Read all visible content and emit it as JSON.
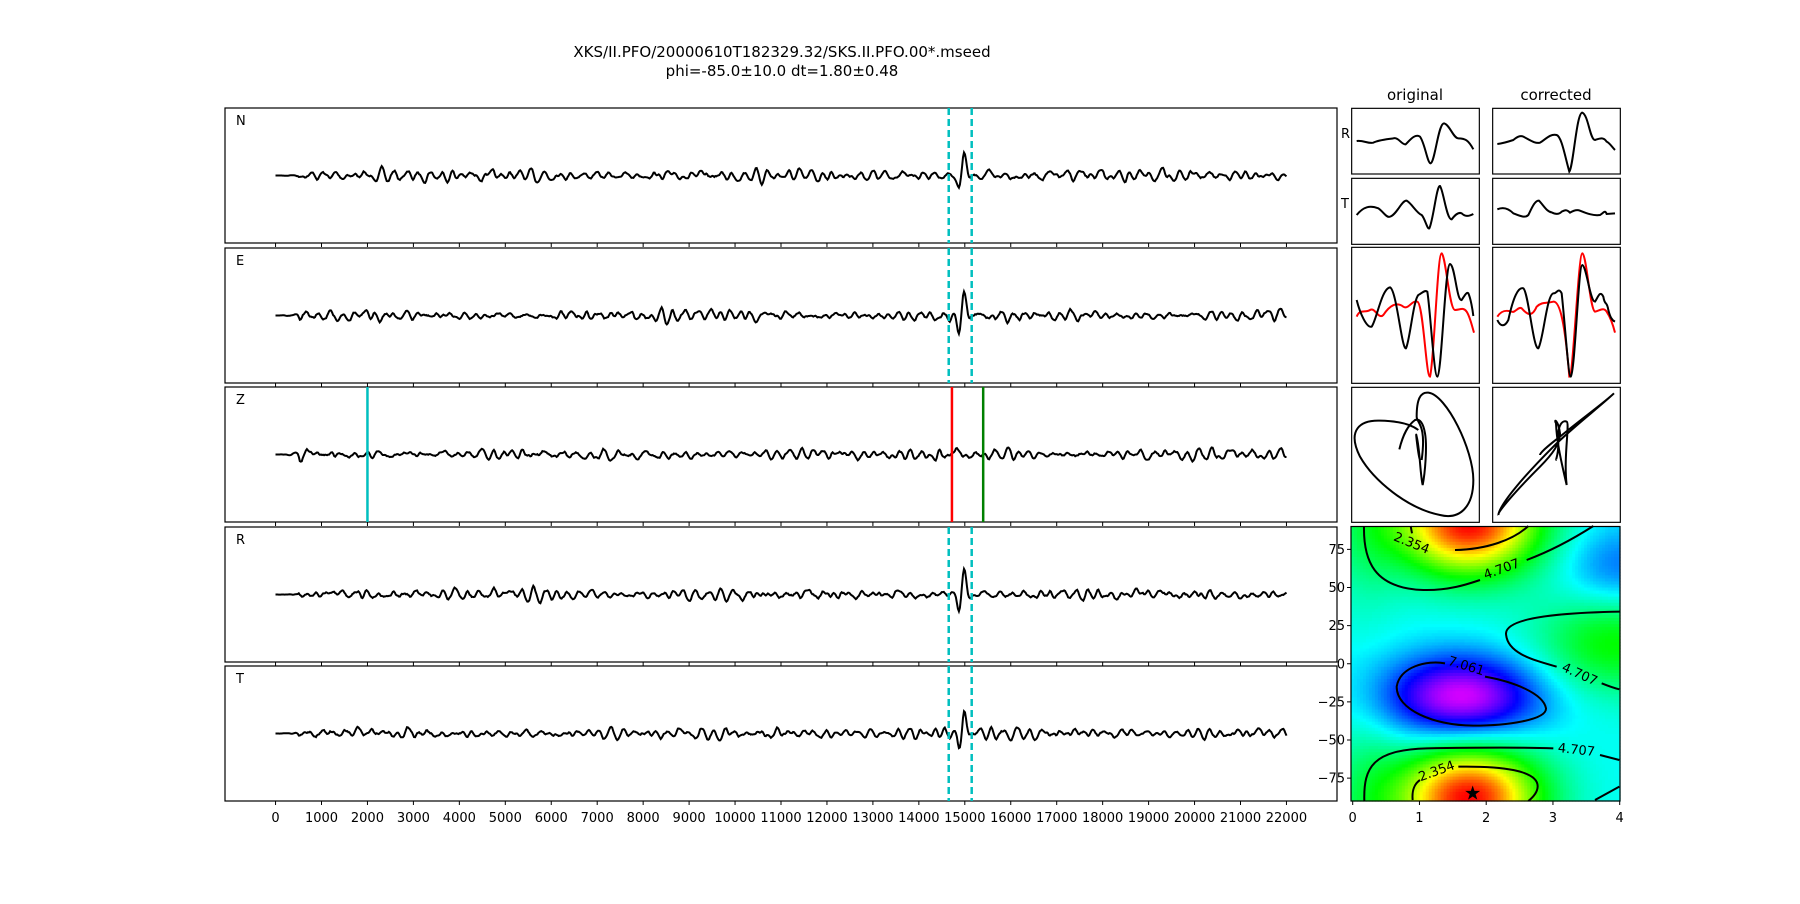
{
  "title": {
    "line1": "XKS/II.PFO/20000610T182329.32/SKS.II.PFO.00*.mseed",
    "line2": "phi=-85.0±10.0 dt=1.80±0.48"
  },
  "chart_data": [
    {
      "type": "line",
      "panels": [
        {
          "label": "N"
        },
        {
          "label": "E"
        },
        {
          "label": "Z"
        },
        {
          "label": "R"
        },
        {
          "label": "T"
        }
      ],
      "xlim": [
        -1100,
        23100
      ],
      "xticks": [
        0,
        1000,
        2000,
        3000,
        4000,
        5000,
        6000,
        7000,
        8000,
        9000,
        10000,
        11000,
        12000,
        13000,
        14000,
        15000,
        16000,
        17000,
        18000,
        19000,
        20000,
        21000,
        22000
      ],
      "window_dashed": {
        "x": [
          14650,
          15150
        ],
        "color": "#00bfbf",
        "panels": [
          "N",
          "E",
          "R",
          "T"
        ]
      },
      "z_markers": [
        {
          "x": 2000,
          "color": "#00bfbf"
        },
        {
          "x": 14720,
          "color": "#ff0000"
        },
        {
          "x": 15400,
          "color": "#008000"
        }
      ],
      "trace_color": "#000000"
    },
    {
      "type": "line",
      "columns": [
        "original",
        "corrected"
      ],
      "row_labels": [
        "R",
        "T"
      ],
      "overlay_colors": {
        "primary": "#000000",
        "secondary": "#ff0000"
      }
    },
    {
      "type": "heatmap",
      "xlim": [
        0,
        4
      ],
      "ylim": [
        -90,
        90
      ],
      "xticks": [
        "0",
        "1",
        "2",
        "3",
        "4"
      ],
      "yticks": [
        "75",
        "50",
        "25",
        "0",
        "−25",
        "−50",
        "−75"
      ],
      "contour_levels": [
        "2.354",
        "4.707",
        "7.061"
      ],
      "best": {
        "dt": 1.8,
        "phi": -85
      },
      "colormap": "gist_rainbow"
    }
  ]
}
